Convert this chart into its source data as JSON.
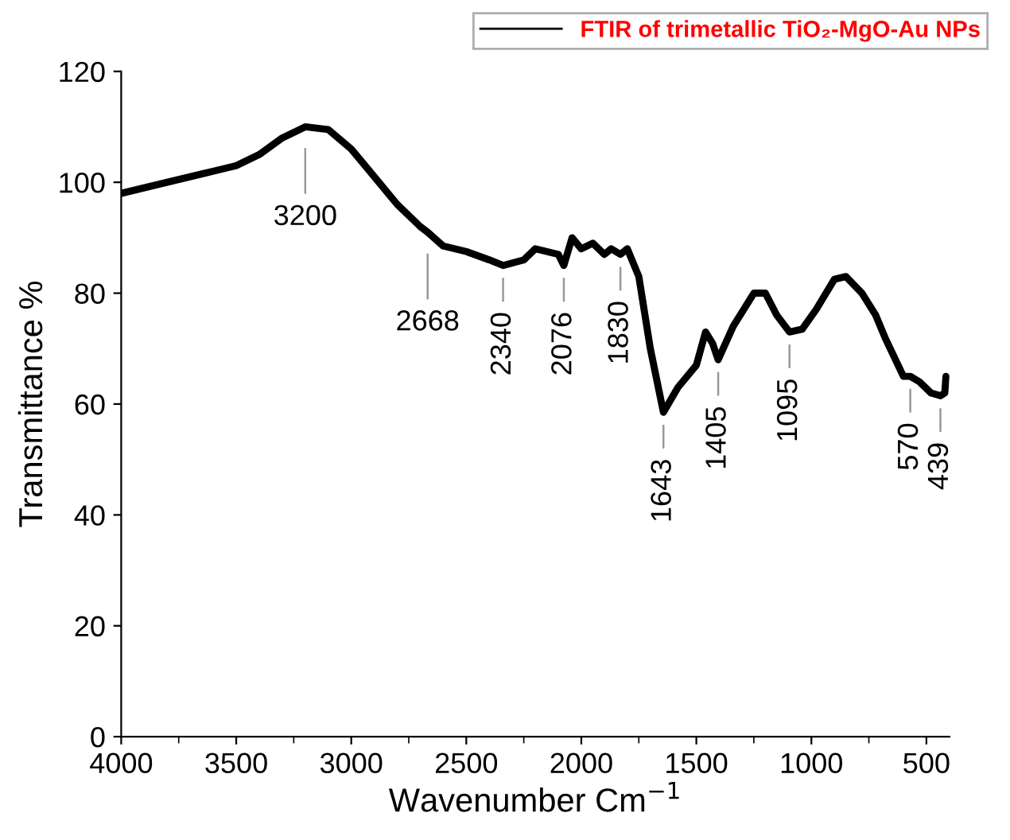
{
  "chart_data": {
    "type": "line",
    "xlabel": "Wavenumber Cm$^{−1}$",
    "ylabel": "Transmittance %",
    "xlim": [
      4000,
      400
    ],
    "ylim": [
      0,
      120
    ],
    "xticks": [
      4000,
      3500,
      3000,
      2500,
      2000,
      1500,
      1000,
      500
    ],
    "yticks": [
      0,
      20,
      40,
      60,
      80,
      100,
      120
    ],
    "grid": false,
    "legend": "top right",
    "marker": "none",
    "line_style": "solid",
    "series": [
      {
        "name": "FTIR of trimetallic TiO₂-MgO-Au NPs",
        "color": "#000000",
        "x": [
          4000,
          3800,
          3600,
          3500,
          3400,
          3300,
          3200,
          3100,
          3000,
          2900,
          2800,
          2700,
          2668,
          2600,
          2500,
          2400,
          2340,
          2250,
          2200,
          2100,
          2076,
          2040,
          2000,
          1950,
          1900,
          1870,
          1830,
          1800,
          1750,
          1700,
          1643,
          1580,
          1500,
          1460,
          1430,
          1405,
          1340,
          1250,
          1200,
          1150,
          1095,
          1040,
          980,
          900,
          850,
          780,
          720,
          680,
          600,
          570,
          530,
          480,
          439,
          420,
          415
        ],
        "values": [
          98,
          100,
          102,
          103,
          105,
          108,
          110,
          109.5,
          106,
          101,
          96,
          92,
          91,
          88.5,
          87.5,
          86,
          85,
          86,
          88,
          87,
          85,
          90,
          88,
          89,
          87,
          88,
          87,
          88,
          83,
          70,
          58.5,
          63,
          67,
          73,
          71,
          68,
          74,
          80,
          80,
          76,
          73,
          73.5,
          77,
          82.5,
          83,
          80,
          76,
          72,
          65,
          65,
          64,
          62,
          61.5,
          62,
          65
        ]
      }
    ],
    "annotations": [
      {
        "text": "3200",
        "x": 3200,
        "y": 110
      },
      {
        "text": "2668",
        "x": 2668,
        "y": 91
      },
      {
        "text": "2340",
        "x": 2340,
        "y": 85
      },
      {
        "text": "2076",
        "x": 2076,
        "y": 85
      },
      {
        "text": "1830",
        "x": 1830,
        "y": 87
      },
      {
        "text": "1643",
        "x": 1643,
        "y": 58.5
      },
      {
        "text": "1405",
        "x": 1405,
        "y": 68
      },
      {
        "text": "1095",
        "x": 1095,
        "y": 73
      },
      {
        "text": "570",
        "x": 570,
        "y": 65
      },
      {
        "text": "439",
        "x": 439,
        "y": 61.5
      }
    ]
  }
}
